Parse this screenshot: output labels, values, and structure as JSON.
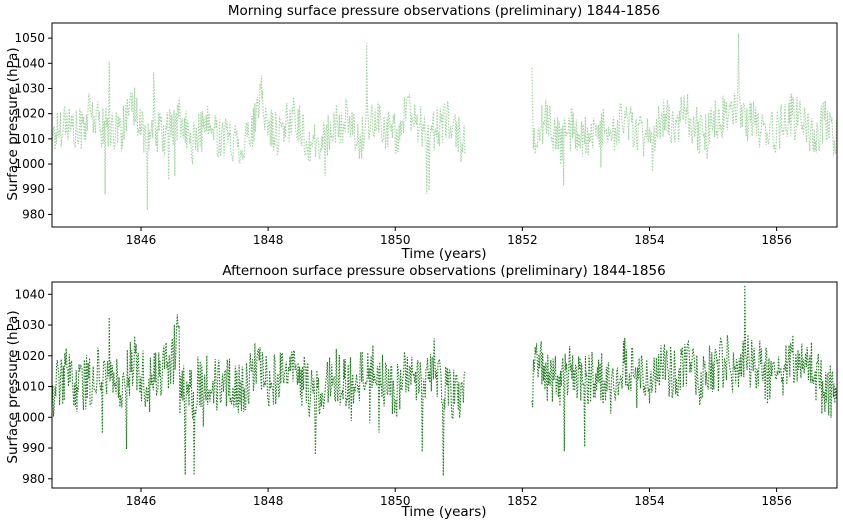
{
  "chart_data": [
    {
      "type": "line",
      "title": "Morning surface pressure observations (preliminary) 1844-1856",
      "xlabel": "Time (years)",
      "ylabel": "Surface pressure (hPa)",
      "xlim": [
        1844.6,
        1856.95
      ],
      "ylim": [
        975,
        1056
      ],
      "xticks": [
        1846,
        1848,
        1850,
        1852,
        1854,
        1856
      ],
      "yticks": [
        980,
        990,
        1000,
        1010,
        1020,
        1030,
        1040,
        1050
      ],
      "line_style": "dotted",
      "color": "#2ca02c",
      "opacity": 0.45,
      "grid": false,
      "gap": [
        1851.1,
        1852.15
      ],
      "series": [
        {
          "x": [
            1844.6,
            1844.8,
            1845.0,
            1845.2,
            1845.4,
            1845.5,
            1845.7,
            1845.9,
            1846.1,
            1846.2,
            1846.4,
            1846.6,
            1846.8,
            1847.0,
            1847.2,
            1847.4,
            1847.6,
            1847.8,
            1847.9,
            1848.0,
            1848.2,
            1848.4,
            1848.6,
            1848.8,
            1849.0,
            1849.2,
            1849.4,
            1849.55,
            1849.8,
            1850.0,
            1850.2,
            1850.4,
            1850.6,
            1850.8,
            1851.0,
            1851.1,
            1852.15,
            1852.2,
            1852.4,
            1852.6,
            1852.8,
            1853.0,
            1853.2,
            1853.4,
            1853.6,
            1853.8,
            1854.0,
            1854.2,
            1854.4,
            1854.6,
            1854.8,
            1855.0,
            1855.2,
            1855.4,
            1855.6,
            1855.8,
            1856.0,
            1856.2,
            1856.4,
            1856.6,
            1856.8,
            1856.95
          ],
          "y": [
            1010,
            1018,
            1012,
            1020,
            1015,
            1033,
            1014,
            1022,
            1010,
            1035,
            1012,
            1018,
            1008,
            1015,
            1012,
            1010,
            1008,
            1016,
            1028,
            1014,
            1012,
            1020,
            1010,
            1006,
            1014,
            1018,
            1010,
            1054,
            1016,
            1012,
            1020,
            1014,
            1012,
            1018,
            1010,
            1008,
            1039,
            1012,
            1018,
            1008,
            1015,
            1010,
            1016,
            1012,
            1018,
            1014,
            1010,
            1018,
            1016,
            1020,
            1012,
            1016,
            1020,
            1043,
            1018,
            1014,
            1012,
            1020,
            1016,
            1012,
            1018,
            1008
          ]
        }
      ]
    },
    {
      "type": "line",
      "title": "Afternoon surface pressure observations (preliminary) 1844-1856",
      "xlabel": "Time (years)",
      "ylabel": "Surface pressure (hPa)",
      "xlim": [
        1844.6,
        1856.95
      ],
      "ylim": [
        977,
        1044
      ],
      "xticks": [
        1846,
        1848,
        1850,
        1852,
        1854,
        1856
      ],
      "yticks": [
        980,
        990,
        1000,
        1010,
        1020,
        1030,
        1040
      ],
      "line_style": "dotted",
      "color": "#1a7a1a",
      "opacity": 1,
      "grid": false,
      "gap": [
        1851.1,
        1852.15
      ],
      "series": [
        {
          "x": [
            1844.6,
            1844.8,
            1845.0,
            1845.2,
            1845.4,
            1845.5,
            1845.7,
            1845.9,
            1846.1,
            1846.3,
            1846.5,
            1846.6,
            1846.8,
            1847.0,
            1847.2,
            1847.4,
            1847.6,
            1847.8,
            1848.0,
            1848.2,
            1848.4,
            1848.6,
            1848.8,
            1849.0,
            1849.2,
            1849.4,
            1849.6,
            1849.8,
            1850.0,
            1850.2,
            1850.4,
            1850.6,
            1850.8,
            1851.0,
            1851.1,
            1852.15,
            1852.2,
            1852.4,
            1852.6,
            1852.8,
            1853.0,
            1853.2,
            1853.4,
            1853.6,
            1853.8,
            1854.0,
            1854.2,
            1854.4,
            1854.6,
            1854.8,
            1855.0,
            1855.2,
            1855.4,
            1855.5,
            1855.7,
            1855.9,
            1856.1,
            1856.3,
            1856.5,
            1856.7,
            1856.95
          ],
          "y": [
            1008,
            1014,
            1010,
            1012,
            1016,
            1032,
            1012,
            1018,
            1010,
            1014,
            1018,
            1032,
            1008,
            1014,
            1010,
            1012,
            1008,
            1016,
            1012,
            1014,
            1016,
            1010,
            1006,
            1014,
            1012,
            1010,
            1018,
            1012,
            1008,
            1016,
            1012,
            1018,
            1010,
            1006,
            1008,
            1008,
            1018,
            1014,
            1010,
            1016,
            1012,
            1014,
            1010,
            1018,
            1012,
            1010,
            1016,
            1014,
            1018,
            1010,
            1016,
            1018,
            1016,
            1043,
            1018,
            1012,
            1014,
            1020,
            1018,
            1010,
            1008
          ]
        }
      ]
    }
  ]
}
